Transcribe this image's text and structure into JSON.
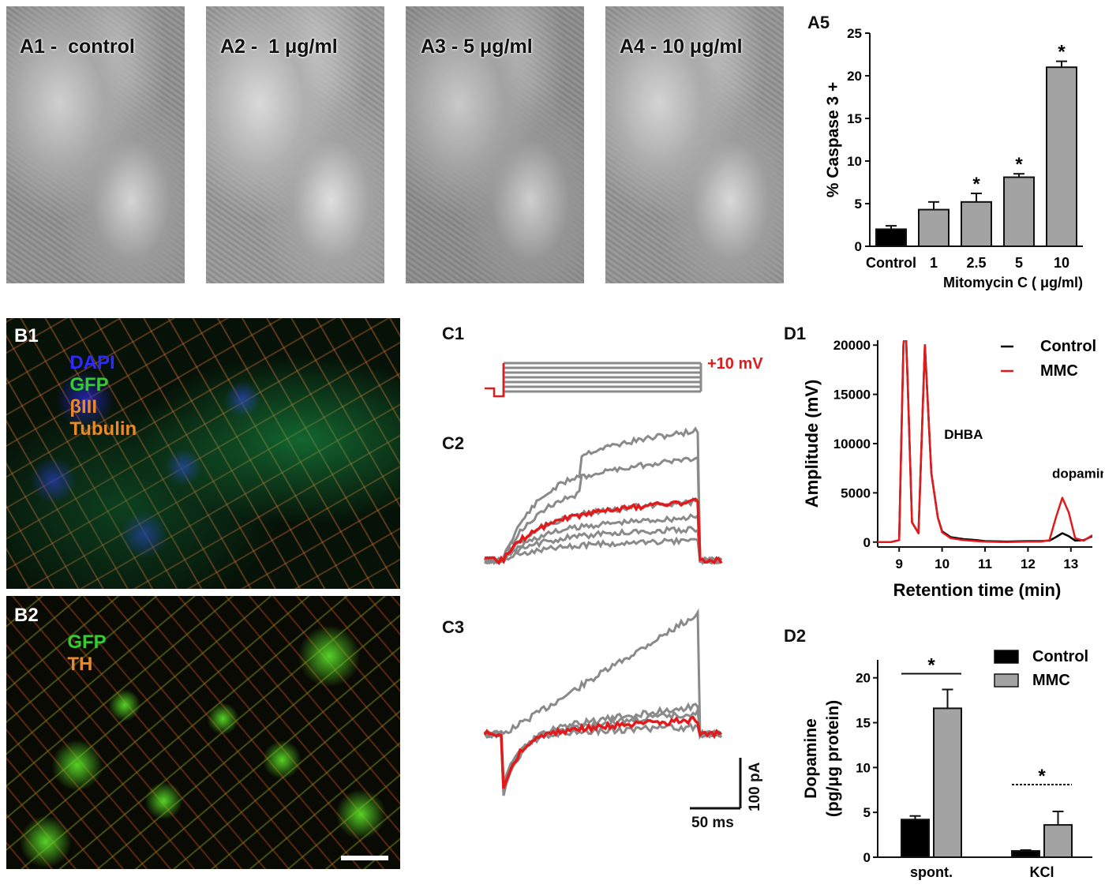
{
  "panelA": {
    "images": [
      {
        "label": "A1",
        "caption": "-  control"
      },
      {
        "label": "A2",
        "caption": "-  1 μg/ml"
      },
      {
        "label": "A3",
        "caption": "- 5 μg/ml"
      },
      {
        "label": "A4",
        "caption": "- 10 μg/ml"
      }
    ]
  },
  "panelB": {
    "b1_label": "B1",
    "b1_stains": [
      {
        "text": "DAPI",
        "color": "#2b2bff"
      },
      {
        "text": "GFP",
        "color": "#33cc33"
      },
      {
        "text": "βIII",
        "color": "#e8892b"
      },
      {
        "text": "Tubulin",
        "color": "#e8892b"
      }
    ],
    "b2_label": "B2",
    "b2_stains": [
      {
        "text": "GFP",
        "color": "#33cc33"
      },
      {
        "text": "TH",
        "color": "#e8892b"
      }
    ]
  },
  "panelC": {
    "c1_label": "C1",
    "c2_label": "C2",
    "c3_label": "C3",
    "step_label": "+10 mV",
    "scale_time": "50 ms",
    "scale_current": "100 pA",
    "colors": {
      "highlight": "#e31a1c",
      "traces": "#8a8a8a"
    }
  },
  "chart_data": [
    {
      "panel": "A5",
      "type": "bar",
      "categories": [
        "Control",
        "1",
        "2.5",
        "5",
        "10"
      ],
      "values": [
        2.0,
        4.3,
        5.2,
        8.1,
        21.0
      ],
      "errors": [
        0.4,
        0.9,
        1.0,
        0.4,
        0.7
      ],
      "significant": [
        false,
        false,
        true,
        true,
        true
      ],
      "significance_marker": "*",
      "bar_colors": [
        "#000000",
        "#a3a3a3",
        "#a3a3a3",
        "#a3a3a3",
        "#a3a3a3"
      ],
      "ylabel": "% Caspase 3 +",
      "xlabel": "Mitomycin C ( μg/ml)",
      "ylim": [
        0,
        25
      ],
      "yticks": [
        0,
        5,
        10,
        15,
        20,
        25
      ]
    },
    {
      "panel": "D1",
      "type": "line",
      "xlabel": "Retention time (min)",
      "ylabel": "Amplitude (mV)",
      "xlim": [
        8.5,
        13.5
      ],
      "ylim": [
        -500,
        20500
      ],
      "xticks": [
        9,
        10,
        11,
        12,
        13
      ],
      "yticks": [
        0,
        5000,
        10000,
        15000,
        20000
      ],
      "annotations": [
        {
          "text": "DHBA",
          "x": 10.5,
          "y": 10500
        },
        {
          "text": "dopamine",
          "x": 13.3,
          "y": 6500
        }
      ],
      "legend": "top-right",
      "series": [
        {
          "name": "Control",
          "color": "#000000",
          "x": [
            8.5,
            8.8,
            9.0,
            9.1,
            9.15,
            9.2,
            9.3,
            9.45,
            9.6,
            9.75,
            9.9,
            10.0,
            10.2,
            10.5,
            10.8,
            11.0,
            11.5,
            12.0,
            12.3,
            12.5,
            12.65,
            12.8,
            12.95,
            13.1,
            13.3,
            13.5
          ],
          "y": [
            0,
            0,
            200,
            20000,
            22000,
            16000,
            2000,
            900,
            20000,
            7000,
            2500,
            1100,
            500,
            300,
            200,
            100,
            50,
            100,
            100,
            150,
            500,
            900,
            600,
            150,
            200,
            600
          ]
        },
        {
          "name": "MMC",
          "color": "#e31a1c",
          "x": [
            8.5,
            8.8,
            9.0,
            9.1,
            9.15,
            9.2,
            9.3,
            9.45,
            9.6,
            9.75,
            9.9,
            10.0,
            10.2,
            10.5,
            10.8,
            11.0,
            11.5,
            12.0,
            12.3,
            12.5,
            12.65,
            12.8,
            12.95,
            13.1,
            13.3,
            13.5
          ],
          "y": [
            0,
            0,
            200,
            20000,
            22000,
            16000,
            2000,
            900,
            20000,
            7000,
            2500,
            1000,
            400,
            200,
            100,
            50,
            0,
            50,
            50,
            200,
            2500,
            4500,
            3000,
            400,
            150,
            700
          ]
        }
      ]
    },
    {
      "panel": "D2",
      "type": "bar",
      "categories": [
        "spont.",
        "KCl"
      ],
      "ylabel": "Dopamine (pg/μg protein)",
      "ylabel_line1": "Dopamine",
      "ylabel_line2": "(pg/μg protein)",
      "ylim": [
        0,
        22
      ],
      "yticks": [
        0,
        5,
        10,
        15,
        20
      ],
      "legend": "top-right",
      "significance_marker": "*",
      "series": [
        {
          "name": "Control",
          "color": "#000000",
          "values": [
            4.2,
            0.7
          ],
          "errors": [
            0.4,
            0.1
          ]
        },
        {
          "name": "MMC",
          "color": "#a3a3a3",
          "values": [
            16.6,
            3.6
          ],
          "errors": [
            2.1,
            1.5
          ]
        }
      ]
    }
  ]
}
